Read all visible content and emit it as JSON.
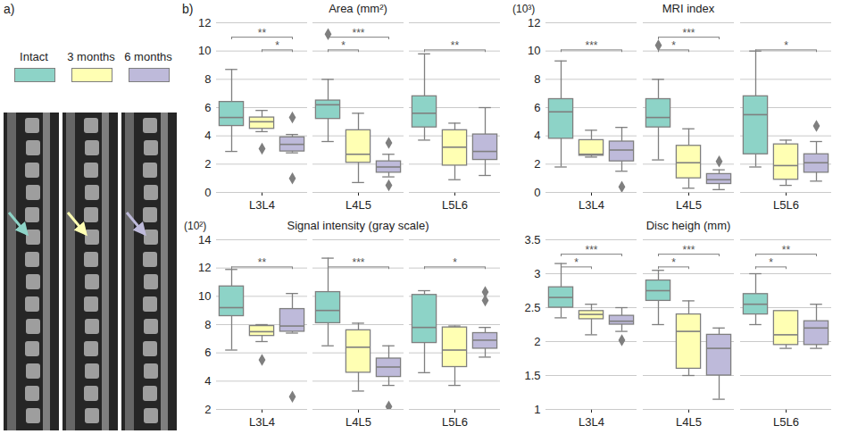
{
  "panel_labels": [
    "a)",
    "b)"
  ],
  "chart_data": [
    {
      "type": "box",
      "title": "Area (mm²)",
      "categories": [
        "L3L4",
        "L4L5",
        "L5L6"
      ],
      "ylim": [
        0,
        12
      ],
      "yticks": [
        0,
        2,
        4,
        6,
        8,
        10,
        12
      ],
      "grid": true,
      "series": [
        {
          "name": "Intact",
          "color": "#8dd3c7",
          "boxes": [
            {
              "min": 2.9,
              "q1": 4.7,
              "median": 5.3,
              "q3": 6.4,
              "max": 8.7,
              "outliers": []
            },
            {
              "min": 3.6,
              "q1": 5.2,
              "median": 6.2,
              "q3": 6.5,
              "max": 8.0,
              "outliers": [
                11.2
              ]
            },
            {
              "min": 3.7,
              "q1": 4.6,
              "median": 5.6,
              "q3": 6.8,
              "max": 9.8,
              "outliers": []
            }
          ]
        },
        {
          "name": "3 months",
          "color": "#ffffb3",
          "boxes": [
            {
              "min": 4.3,
              "q1": 4.5,
              "median": 5.0,
              "q3": 5.3,
              "max": 5.8,
              "outliers": [
                3.1
              ]
            },
            {
              "min": 0.7,
              "q1": 2.1,
              "median": 2.7,
              "q3": 4.4,
              "max": 5.6,
              "outliers": []
            },
            {
              "min": 0.9,
              "q1": 1.9,
              "median": 3.2,
              "q3": 4.4,
              "max": 4.9,
              "outliers": []
            }
          ]
        },
        {
          "name": "6 months",
          "color": "#bebada",
          "boxes": [
            {
              "min": 2.8,
              "q1": 2.9,
              "median": 3.4,
              "q3": 3.9,
              "max": 4.1,
              "outliers": [
                5.3,
                1.0
              ]
            },
            {
              "min": 1.1,
              "q1": 1.4,
              "median": 1.8,
              "q3": 2.2,
              "max": 2.7,
              "outliers": [
                3.5,
                0.5
              ]
            },
            {
              "min": 1.2,
              "q1": 2.3,
              "median": 2.9,
              "q3": 4.1,
              "max": 6.0,
              "outliers": []
            }
          ]
        }
      ],
      "comparisons": [
        {
          "category": "L3L4",
          "from": "Intact",
          "to": "6 months",
          "label": "**"
        },
        {
          "category": "L3L4",
          "from": "3 months",
          "to": "6 months",
          "label": "*"
        },
        {
          "category": "L4L5",
          "from": "Intact",
          "to": "3 months",
          "label": "*"
        },
        {
          "category": "L4L5",
          "from": "Intact",
          "to": "6 months",
          "label": "***"
        },
        {
          "category": "L5L6",
          "from": "Intact",
          "to": "6 months",
          "label": "**"
        }
      ]
    },
    {
      "type": "box",
      "title": "MRI index",
      "scale_label": "(10³)",
      "categories": [
        "L3L4",
        "L4L5",
        "L5L6"
      ],
      "ylim": [
        0,
        12
      ],
      "yticks": [
        0,
        2,
        4,
        6,
        8,
        10,
        12
      ],
      "grid": true,
      "series": [
        {
          "name": "Intact",
          "color": "#8dd3c7",
          "boxes": [
            {
              "min": 1.8,
              "q1": 3.8,
              "median": 5.7,
              "q3": 6.6,
              "max": 9.3,
              "outliers": []
            },
            {
              "min": 2.3,
              "q1": 4.6,
              "median": 5.3,
              "q3": 6.6,
              "max": 8.0,
              "outliers": [
                10.4
              ]
            },
            {
              "min": 1.8,
              "q1": 2.7,
              "median": 5.5,
              "q3": 6.8,
              "max": 10.0,
              "outliers": []
            }
          ]
        },
        {
          "name": "3 months",
          "color": "#ffffb3",
          "boxes": [
            {
              "min": 2.5,
              "q1": 2.6,
              "median": 2.7,
              "q3": 3.7,
              "max": 4.4,
              "outliers": []
            },
            {
              "min": 0.3,
              "q1": 1.0,
              "median": 2.1,
              "q3": 3.3,
              "max": 4.5,
              "outliers": []
            },
            {
              "min": 0.5,
              "q1": 0.9,
              "median": 1.9,
              "q3": 3.4,
              "max": 3.7,
              "outliers": []
            }
          ]
        },
        {
          "name": "6 months",
          "color": "#bebada",
          "boxes": [
            {
              "min": 1.5,
              "q1": 2.2,
              "median": 3.0,
              "q3": 3.6,
              "max": 4.6,
              "outliers": [
                0.4
              ]
            },
            {
              "min": 0.2,
              "q1": 0.6,
              "median": 0.9,
              "q3": 1.3,
              "max": 1.6,
              "outliers": [
                2.2
              ]
            },
            {
              "min": 0.8,
              "q1": 1.4,
              "median": 2.1,
              "q3": 2.7,
              "max": 3.6,
              "outliers": [
                4.7
              ]
            }
          ]
        }
      ],
      "comparisons": [
        {
          "category": "L3L4",
          "from": "Intact",
          "to": "6 months",
          "label": "***"
        },
        {
          "category": "L4L5",
          "from": "Intact",
          "to": "3 months",
          "label": "*"
        },
        {
          "category": "L4L5",
          "from": "Intact",
          "to": "6 months",
          "label": "***"
        },
        {
          "category": "L5L6",
          "from": "Intact",
          "to": "6 months",
          "label": "*"
        }
      ]
    },
    {
      "type": "box",
      "title": "Signal intensity (gray scale)",
      "scale_label": "(10²)",
      "categories": [
        "L3L4",
        "L4L5",
        "L5L6"
      ],
      "ylim": [
        2,
        14
      ],
      "yticks": [
        2,
        4,
        6,
        8,
        10,
        12,
        14
      ],
      "grid": true,
      "series": [
        {
          "name": "Intact",
          "color": "#8dd3c7",
          "boxes": [
            {
              "min": 6.2,
              "q1": 8.6,
              "median": 9.2,
              "q3": 10.7,
              "max": 11.9,
              "outliers": []
            },
            {
              "min": 6.5,
              "q1": 8.1,
              "median": 9.0,
              "q3": 10.3,
              "max": 12.7,
              "outliers": []
            },
            {
              "min": 4.6,
              "q1": 6.7,
              "median": 7.8,
              "q3": 10.1,
              "max": 10.4,
              "outliers": []
            }
          ]
        },
        {
          "name": "3 months",
          "color": "#ffffb3",
          "boxes": [
            {
              "min": 6.8,
              "q1": 7.2,
              "median": 7.5,
              "q3": 7.9,
              "max": 8.0,
              "outliers": [
                5.5
              ]
            },
            {
              "min": 3.3,
              "q1": 4.6,
              "median": 6.4,
              "q3": 7.6,
              "max": 8.1,
              "outliers": []
            },
            {
              "min": 3.7,
              "q1": 5.0,
              "median": 6.2,
              "q3": 7.8,
              "max": 7.9,
              "outliers": []
            }
          ]
        },
        {
          "name": "6 months",
          "color": "#bebada",
          "boxes": [
            {
              "min": 7.4,
              "q1": 7.5,
              "median": 7.9,
              "q3": 9.1,
              "max": 10.2,
              "outliers": [
                2.9
              ]
            },
            {
              "min": 3.7,
              "q1": 4.3,
              "median": 5.0,
              "q3": 5.6,
              "max": 6.5,
              "outliers": [
                2.2
              ]
            },
            {
              "min": 5.7,
              "q1": 6.3,
              "median": 6.9,
              "q3": 7.4,
              "max": 7.8,
              "outliers": [
                9.7,
                10.3
              ]
            }
          ]
        }
      ],
      "comparisons": [
        {
          "category": "L3L4",
          "from": "Intact",
          "to": "6 months",
          "label": "**"
        },
        {
          "category": "L4L5",
          "from": "Intact",
          "to": "6 months",
          "label": "***"
        },
        {
          "category": "L5L6",
          "from": "Intact",
          "to": "6 months",
          "label": "*"
        }
      ]
    },
    {
      "type": "box",
      "title": "Disc heigh (mm)",
      "categories": [
        "L3L4",
        "L4L5",
        "L5L6"
      ],
      "ylim": [
        1,
        3.5
      ],
      "yticks": [
        1,
        1.5,
        2,
        2.5,
        3,
        3.5
      ],
      "grid": true,
      "series": [
        {
          "name": "Intact",
          "color": "#8dd3c7",
          "boxes": [
            {
              "min": 2.35,
              "q1": 2.5,
              "median": 2.65,
              "q3": 2.8,
              "max": 3.15,
              "outliers": []
            },
            {
              "min": 2.25,
              "q1": 2.6,
              "median": 2.75,
              "q3": 2.9,
              "max": 3.05,
              "outliers": []
            },
            {
              "min": 2.25,
              "q1": 2.4,
              "median": 2.55,
              "q3": 2.7,
              "max": 3.0,
              "outliers": []
            }
          ]
        },
        {
          "name": "3 months",
          "color": "#ffffb3",
          "boxes": [
            {
              "min": 2.1,
              "q1": 2.33,
              "median": 2.4,
              "q3": 2.45,
              "max": 2.55,
              "outliers": []
            },
            {
              "min": 1.5,
              "q1": 1.6,
              "median": 2.15,
              "q3": 2.4,
              "max": 2.6,
              "outliers": []
            },
            {
              "min": 1.9,
              "q1": 1.95,
              "median": 2.1,
              "q3": 2.45,
              "max": 2.45,
              "outliers": []
            }
          ]
        },
        {
          "name": "6 months",
          "color": "#bebada",
          "boxes": [
            {
              "min": 2.15,
              "q1": 2.25,
              "median": 2.3,
              "q3": 2.38,
              "max": 2.5,
              "outliers": [
                2.02
              ]
            },
            {
              "min": 1.15,
              "q1": 1.5,
              "median": 1.9,
              "q3": 2.1,
              "max": 2.2,
              "outliers": []
            },
            {
              "min": 1.9,
              "q1": 1.95,
              "median": 2.2,
              "q3": 2.3,
              "max": 2.55,
              "outliers": []
            }
          ]
        }
      ],
      "comparisons": [
        {
          "category": "L3L4",
          "from": "Intact",
          "to": "3 months",
          "label": "*"
        },
        {
          "category": "L3L4",
          "from": "Intact",
          "to": "6 months",
          "label": "***"
        },
        {
          "category": "L4L5",
          "from": "Intact",
          "to": "3 months",
          "label": "*"
        },
        {
          "category": "L4L5",
          "from": "Intact",
          "to": "6 months",
          "label": "***"
        },
        {
          "category": "L5L6",
          "from": "Intact",
          "to": "3 months",
          "label": "*"
        },
        {
          "category": "L5L6",
          "from": "Intact",
          "to": "6 months",
          "label": "**"
        }
      ]
    }
  ]
}
